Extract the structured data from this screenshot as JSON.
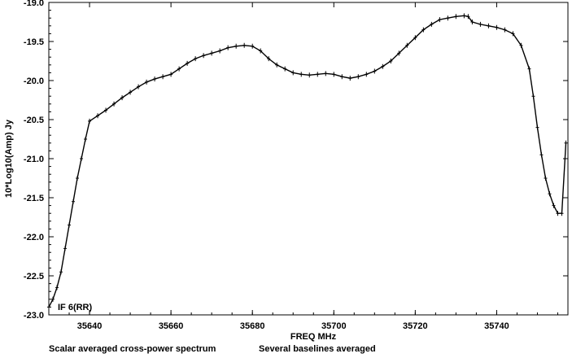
{
  "chart_data": {
    "type": "line",
    "xlabel": "FREQ   MHz",
    "ylabel": "10*Log10(Amp) Jy",
    "xlim": [
      35630.0,
      35757.5
    ],
    "ylim": [
      -23.0,
      -19.0
    ],
    "x_ticks": [
      35640,
      35660,
      35680,
      35700,
      35720,
      35740
    ],
    "y_ticks": [
      -19.0,
      -19.5,
      -20.0,
      -20.5,
      -21.0,
      -21.5,
      -22.0,
      -22.5,
      -23.0
    ],
    "y_tick_labels": [
      "-19.0",
      "-19.5",
      "-20.0",
      "-20.5",
      "-21.0",
      "-21.5",
      "-22.0",
      "-22.5",
      "-23.0"
    ],
    "x_tick_labels": [
      "35640",
      "35660",
      "35680",
      "35700",
      "35720",
      "35740"
    ],
    "annotation": "IF 6(RR)",
    "footer_left": "Scalar averaged cross-power spectrum",
    "footer_right": "Several baselines averaged",
    "series": [
      {
        "x": [
          35630.0,
          35631.0,
          35632.0,
          35633.0,
          35634.0,
          35635.0,
          35636.0,
          35637.0,
          35638.0,
          35639.0,
          35640.0,
          35642.0,
          35644.0,
          35646.0,
          35648.0,
          35650.0,
          35652.0,
          35654.0,
          35656.0,
          35658.0,
          35660.0,
          35662.0,
          35664.0,
          35666.0,
          35668.0,
          35670.0,
          35672.0,
          35674.0,
          35676.0,
          35678.0,
          35680.0,
          35682.0,
          35684.0,
          35686.0,
          35688.0,
          35690.0,
          35692.0,
          35694.0,
          35696.0,
          35698.0,
          35700.0,
          35702.0,
          35704.0,
          35706.0,
          35708.0,
          35710.0,
          35712.0,
          35714.0,
          35716.0,
          35718.0,
          35720.0,
          35722.0,
          35724.0,
          35726.0,
          35728.0,
          35730.0,
          35732.0,
          35733.0,
          35734.0,
          35736.0,
          35738.0,
          35740.0,
          35742.0,
          35744.0,
          35746.0,
          35748.0,
          35749.0,
          35750.0,
          35751.0,
          35752.0,
          35753.0,
          35754.0,
          35755.0,
          35756.0,
          35757.0
        ],
        "y": [
          -22.9,
          -22.8,
          -22.65,
          -22.45,
          -22.15,
          -21.85,
          -21.55,
          -21.25,
          -21.0,
          -20.75,
          -20.52,
          -20.45,
          -20.38,
          -20.3,
          -20.22,
          -20.15,
          -20.08,
          -20.02,
          -19.98,
          -19.95,
          -19.92,
          -19.85,
          -19.78,
          -19.72,
          -19.68,
          -19.65,
          -19.62,
          -19.58,
          -19.56,
          -19.55,
          -19.56,
          -19.62,
          -19.72,
          -19.8,
          -19.85,
          -19.9,
          -19.92,
          -19.93,
          -19.92,
          -19.91,
          -19.92,
          -19.95,
          -19.97,
          -19.95,
          -19.92,
          -19.88,
          -19.82,
          -19.75,
          -19.65,
          -19.55,
          -19.45,
          -19.35,
          -19.28,
          -19.22,
          -19.2,
          -19.18,
          -19.17,
          -19.18,
          -19.25,
          -19.28,
          -19.3,
          -19.32,
          -19.35,
          -19.4,
          -19.55,
          -19.85,
          -20.2,
          -20.6,
          -20.95,
          -21.25,
          -21.45,
          -21.6,
          -21.7,
          -21.7,
          -20.8
        ]
      }
    ]
  }
}
